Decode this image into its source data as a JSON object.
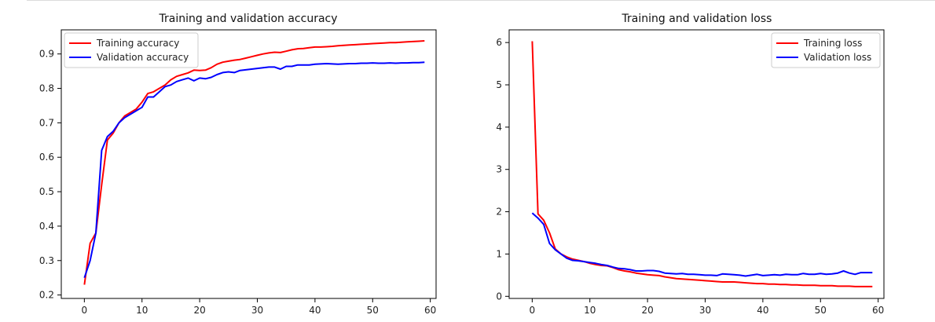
{
  "chart_data": [
    {
      "type": "line",
      "title": "Training and validation accuracy",
      "xlabel": "",
      "ylabel": "",
      "xlim": [
        -4,
        61
      ],
      "ylim": [
        0.19,
        0.97
      ],
      "xticks": [
        0,
        10,
        20,
        30,
        40,
        50,
        60
      ],
      "yticks": [
        0.2,
        0.3,
        0.4,
        0.5,
        0.6,
        0.7,
        0.8,
        0.9
      ],
      "grid": false,
      "legend_position": "top-left",
      "x": [
        0,
        1,
        2,
        3,
        4,
        5,
        6,
        7,
        8,
        9,
        10,
        11,
        12,
        13,
        14,
        15,
        16,
        17,
        18,
        19,
        20,
        21,
        22,
        23,
        24,
        25,
        26,
        27,
        28,
        29,
        30,
        31,
        32,
        33,
        34,
        35,
        36,
        37,
        38,
        39,
        40,
        41,
        42,
        43,
        44,
        45,
        46,
        47,
        48,
        49,
        50,
        51,
        52,
        53,
        54,
        55,
        56,
        57,
        58,
        59
      ],
      "series": [
        {
          "name": "Training accuracy",
          "color": "#ff0000",
          "values": [
            0.23,
            0.35,
            0.38,
            0.52,
            0.65,
            0.67,
            0.7,
            0.72,
            0.73,
            0.74,
            0.76,
            0.785,
            0.79,
            0.8,
            0.81,
            0.825,
            0.835,
            0.84,
            0.845,
            0.853,
            0.852,
            0.853,
            0.86,
            0.87,
            0.876,
            0.879,
            0.882,
            0.884,
            0.888,
            0.892,
            0.896,
            0.9,
            0.903,
            0.905,
            0.904,
            0.908,
            0.912,
            0.915,
            0.916,
            0.918,
            0.92,
            0.92,
            0.921,
            0.922,
            0.924,
            0.925,
            0.926,
            0.927,
            0.928,
            0.929,
            0.93,
            0.931,
            0.932,
            0.933,
            0.933,
            0.934,
            0.935,
            0.936,
            0.937,
            0.938
          ]
        },
        {
          "name": "Validation accuracy",
          "color": "#0000ff",
          "values": [
            0.25,
            0.3,
            0.38,
            0.62,
            0.66,
            0.675,
            0.7,
            0.715,
            0.725,
            0.735,
            0.745,
            0.775,
            0.775,
            0.79,
            0.805,
            0.81,
            0.82,
            0.825,
            0.83,
            0.822,
            0.83,
            0.828,
            0.832,
            0.84,
            0.846,
            0.848,
            0.846,
            0.852,
            0.854,
            0.856,
            0.858,
            0.86,
            0.862,
            0.862,
            0.856,
            0.864,
            0.864,
            0.868,
            0.868,
            0.868,
            0.87,
            0.871,
            0.872,
            0.871,
            0.87,
            0.871,
            0.872,
            0.872,
            0.873,
            0.873,
            0.874,
            0.873,
            0.873,
            0.874,
            0.873,
            0.874,
            0.874,
            0.875,
            0.875,
            0.876
          ]
        }
      ]
    },
    {
      "type": "line",
      "title": "Training and validation loss",
      "xlabel": "",
      "ylabel": "",
      "xlim": [
        -4,
        61
      ],
      "ylim": [
        -0.05,
        6.3
      ],
      "xticks": [
        0,
        10,
        20,
        30,
        40,
        50,
        60
      ],
      "yticks": [
        0,
        1,
        2,
        3,
        4,
        5,
        6
      ],
      "grid": false,
      "legend_position": "top-right",
      "x": [
        0,
        1,
        2,
        3,
        4,
        5,
        6,
        7,
        8,
        9,
        10,
        11,
        12,
        13,
        14,
        15,
        16,
        17,
        18,
        19,
        20,
        21,
        22,
        23,
        24,
        25,
        26,
        27,
        28,
        29,
        30,
        31,
        32,
        33,
        34,
        35,
        36,
        37,
        38,
        39,
        40,
        41,
        42,
        43,
        44,
        45,
        46,
        47,
        48,
        49,
        50,
        51,
        52,
        53,
        54,
        55,
        56,
        57,
        58,
        59
      ],
      "series": [
        {
          "name": "Training loss",
          "color": "#ff0000",
          "values": [
            6.03,
            1.95,
            1.8,
            1.5,
            1.12,
            1.0,
            0.93,
            0.88,
            0.85,
            0.82,
            0.78,
            0.75,
            0.73,
            0.72,
            0.68,
            0.63,
            0.6,
            0.58,
            0.55,
            0.53,
            0.51,
            0.5,
            0.49,
            0.46,
            0.44,
            0.42,
            0.41,
            0.4,
            0.39,
            0.38,
            0.37,
            0.36,
            0.35,
            0.34,
            0.34,
            0.34,
            0.33,
            0.32,
            0.31,
            0.3,
            0.3,
            0.29,
            0.29,
            0.28,
            0.28,
            0.27,
            0.27,
            0.26,
            0.26,
            0.26,
            0.25,
            0.25,
            0.25,
            0.24,
            0.24,
            0.24,
            0.23,
            0.23,
            0.23,
            0.23
          ]
        },
        {
          "name": "Validation loss",
          "color": "#0000ff",
          "values": [
            1.97,
            1.85,
            1.7,
            1.25,
            1.1,
            1.0,
            0.9,
            0.85,
            0.84,
            0.82,
            0.8,
            0.78,
            0.75,
            0.73,
            0.69,
            0.66,
            0.65,
            0.63,
            0.6,
            0.6,
            0.61,
            0.61,
            0.59,
            0.55,
            0.54,
            0.53,
            0.54,
            0.52,
            0.52,
            0.51,
            0.5,
            0.5,
            0.49,
            0.53,
            0.52,
            0.51,
            0.5,
            0.48,
            0.5,
            0.52,
            0.49,
            0.5,
            0.51,
            0.5,
            0.52,
            0.51,
            0.51,
            0.54,
            0.52,
            0.52,
            0.54,
            0.52,
            0.53,
            0.55,
            0.6,
            0.55,
            0.52,
            0.56,
            0.56,
            0.56
          ]
        }
      ]
    }
  ]
}
